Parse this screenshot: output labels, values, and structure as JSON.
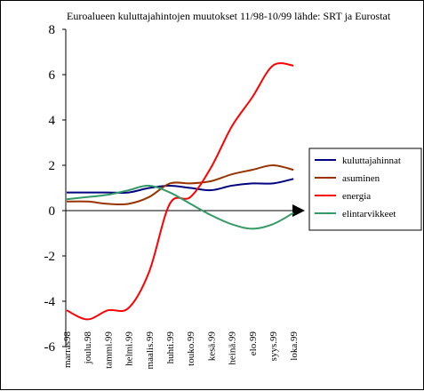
{
  "chart_data": {
    "type": "line",
    "title": "Euroalueen kuluttajahintojen muutokset 11/98-10/99 lähde: SRT ja Eurostat",
    "xlabel": "",
    "ylabel": "",
    "categories": [
      "marras98",
      "joulu.98",
      "tammi.99",
      "helmi.99",
      "maalis.99",
      "huhti.99",
      "touko.99",
      "kesä.99",
      "heinä.99",
      "elo.99",
      "syys.99",
      "loka.99"
    ],
    "ylim": [
      -6,
      8
    ],
    "yticks": [
      -6,
      -4,
      -2,
      0,
      2,
      4,
      6,
      8
    ],
    "grid": false,
    "legend_position": "right",
    "series": [
      {
        "name": "kuluttajahinnat",
        "color": "#000080",
        "values": [
          0.8,
          0.8,
          0.8,
          0.8,
          1.0,
          1.1,
          1.0,
          0.9,
          1.1,
          1.2,
          1.2,
          1.4
        ]
      },
      {
        "name": "asuminen",
        "color": "#993300",
        "values": [
          0.4,
          0.4,
          0.3,
          0.3,
          0.6,
          1.2,
          1.2,
          1.3,
          1.6,
          1.8,
          2.0,
          1.8
        ]
      },
      {
        "name": "energia",
        "color": "#ff0000",
        "values": [
          -4.4,
          -4.8,
          -4.4,
          -4.3,
          -2.7,
          0.3,
          0.6,
          1.9,
          3.7,
          5.0,
          6.4,
          6.4
        ]
      },
      {
        "name": "elintarvikkeet",
        "color": "#339966",
        "values": [
          0.5,
          0.6,
          0.7,
          0.9,
          1.1,
          0.8,
          0.3,
          -0.2,
          -0.6,
          -0.8,
          -0.6,
          -0.1
        ]
      }
    ]
  }
}
